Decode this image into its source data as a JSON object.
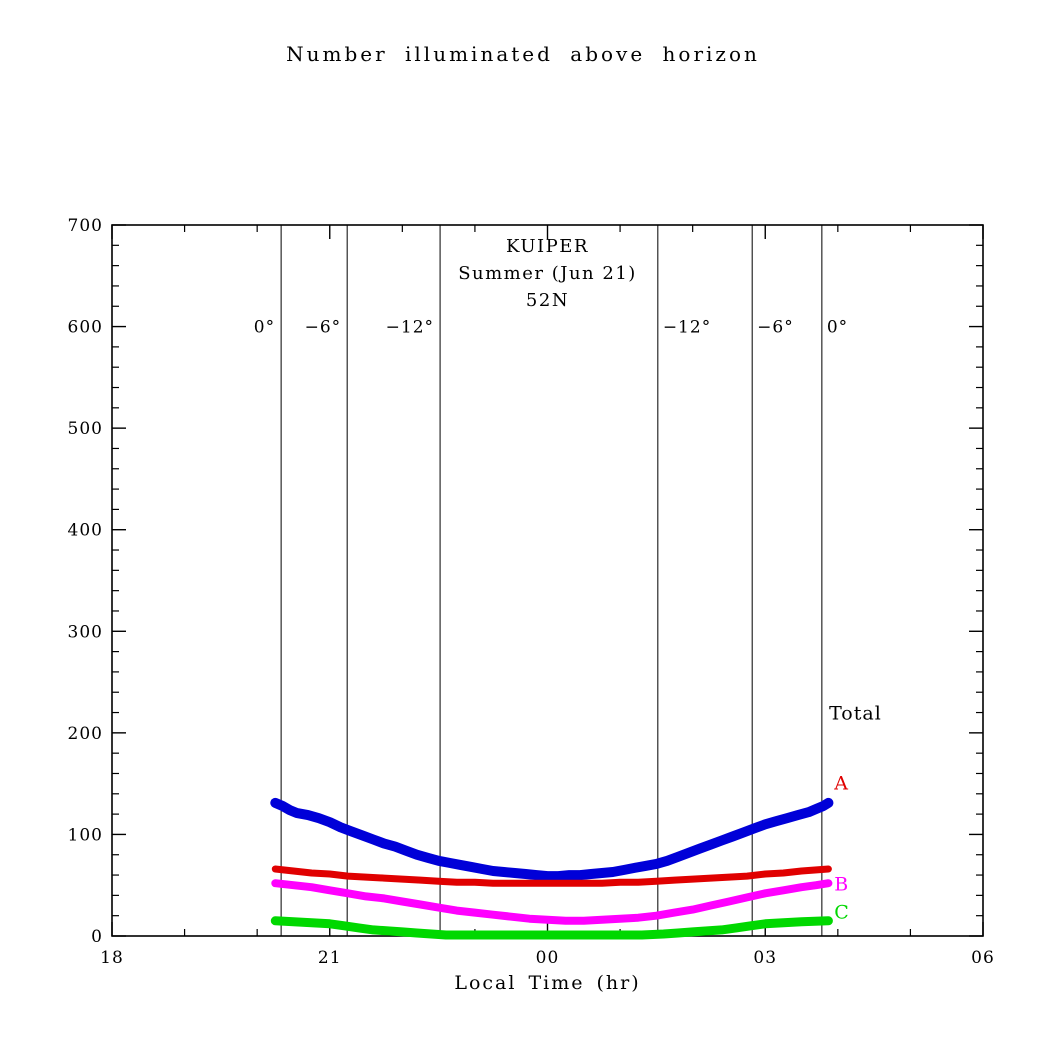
{
  "chart_data": {
    "type": "line",
    "title": "Number illuminated above horizon",
    "xlabel": "Local Time (hr)",
    "ylabel": "",
    "grid": false,
    "xlim_hours": [
      18,
      30
    ],
    "ylim": [
      0,
      700
    ],
    "x_major_ticks": [
      {
        "hour": 18,
        "label": "18"
      },
      {
        "hour": 21,
        "label": "21"
      },
      {
        "hour": 24,
        "label": "00"
      },
      {
        "hour": 27,
        "label": "03"
      },
      {
        "hour": 30,
        "label": "06"
      }
    ],
    "x_minor_step_hours": 1,
    "y_major_ticks": [
      {
        "value": 0,
        "label": "0"
      },
      {
        "value": 100,
        "label": "100"
      },
      {
        "value": 200,
        "label": "200"
      },
      {
        "value": 300,
        "label": "300"
      },
      {
        "value": 400,
        "label": "400"
      },
      {
        "value": 500,
        "label": "500"
      },
      {
        "value": 600,
        "label": "600"
      },
      {
        "value": 700,
        "label": "700"
      }
    ],
    "y_minor_step": 20,
    "inner_labels": [
      "KUIPER",
      "Summer (Jun 21)",
      "52N"
    ],
    "twilight_label_value": 600,
    "twilight_lines": [
      {
        "hour": 20.33,
        "label": "0°",
        "side": "left"
      },
      {
        "hour": 21.24,
        "label": "−6°",
        "side": "left"
      },
      {
        "hour": 22.52,
        "label": "−12°",
        "side": "left"
      },
      {
        "hour": 25.52,
        "label": "−12°",
        "side": "right"
      },
      {
        "hour": 26.82,
        "label": "−6°",
        "side": "right"
      },
      {
        "hour": 27.78,
        "label": "0°",
        "side": "right"
      }
    ],
    "series": [
      {
        "name": "Total",
        "color": "#0000d8",
        "label_color": "#000000",
        "stroke_width": 10,
        "label_at": {
          "hour": 27.88,
          "value": 213
        },
        "points": [
          [
            20.25,
            131
          ],
          [
            20.35,
            128
          ],
          [
            20.45,
            124
          ],
          [
            20.55,
            121
          ],
          [
            20.7,
            119
          ],
          [
            20.85,
            116
          ],
          [
            21.0,
            112
          ],
          [
            21.15,
            107
          ],
          [
            21.3,
            103
          ],
          [
            21.45,
            99
          ],
          [
            21.6,
            95
          ],
          [
            21.75,
            91
          ],
          [
            21.9,
            88
          ],
          [
            22.05,
            84
          ],
          [
            22.2,
            80
          ],
          [
            22.35,
            77
          ],
          [
            22.5,
            74
          ],
          [
            22.65,
            72
          ],
          [
            22.8,
            70
          ],
          [
            22.95,
            68
          ],
          [
            23.1,
            66
          ],
          [
            23.25,
            64
          ],
          [
            23.4,
            63
          ],
          [
            23.55,
            62
          ],
          [
            23.7,
            61
          ],
          [
            23.85,
            60
          ],
          [
            24.0,
            59
          ],
          [
            24.15,
            59
          ],
          [
            24.3,
            60
          ],
          [
            24.45,
            60
          ],
          [
            24.6,
            61
          ],
          [
            24.75,
            62
          ],
          [
            24.9,
            63
          ],
          [
            25.05,
            65
          ],
          [
            25.2,
            67
          ],
          [
            25.35,
            69
          ],
          [
            25.5,
            71
          ],
          [
            25.65,
            74
          ],
          [
            25.8,
            78
          ],
          [
            25.95,
            82
          ],
          [
            26.1,
            86
          ],
          [
            26.25,
            90
          ],
          [
            26.4,
            94
          ],
          [
            26.55,
            98
          ],
          [
            26.7,
            102
          ],
          [
            26.85,
            106
          ],
          [
            27.0,
            110
          ],
          [
            27.15,
            113
          ],
          [
            27.3,
            116
          ],
          [
            27.45,
            119
          ],
          [
            27.6,
            122
          ],
          [
            27.7,
            125
          ],
          [
            27.8,
            128
          ],
          [
            27.87,
            131
          ]
        ]
      },
      {
        "name": "A",
        "color": "#e00000",
        "label_color": "#e00000",
        "stroke_width": 7,
        "label_at": {
          "hour": 27.95,
          "value": 144
        },
        "points": [
          [
            20.25,
            66
          ],
          [
            20.5,
            64
          ],
          [
            20.75,
            62
          ],
          [
            21.0,
            61
          ],
          [
            21.25,
            59
          ],
          [
            21.5,
            58
          ],
          [
            21.75,
            57
          ],
          [
            22.0,
            56
          ],
          [
            22.25,
            55
          ],
          [
            22.5,
            54
          ],
          [
            22.75,
            53
          ],
          [
            23.0,
            53
          ],
          [
            23.25,
            52
          ],
          [
            23.5,
            52
          ],
          [
            23.75,
            52
          ],
          [
            24.0,
            52
          ],
          [
            24.25,
            52
          ],
          [
            24.5,
            52
          ],
          [
            24.75,
            52
          ],
          [
            25.0,
            53
          ],
          [
            25.25,
            53
          ],
          [
            25.5,
            54
          ],
          [
            25.75,
            55
          ],
          [
            26.0,
            56
          ],
          [
            26.25,
            57
          ],
          [
            26.5,
            58
          ],
          [
            26.75,
            59
          ],
          [
            27.0,
            61
          ],
          [
            27.25,
            62
          ],
          [
            27.5,
            64
          ],
          [
            27.87,
            66
          ]
        ]
      },
      {
        "name": "B",
        "color": "#ff00ff",
        "label_color": "#ff00ff",
        "stroke_width": 8,
        "label_at": {
          "hour": 27.95,
          "value": 45
        },
        "points": [
          [
            20.25,
            52
          ],
          [
            20.5,
            50
          ],
          [
            20.75,
            48
          ],
          [
            21.0,
            45
          ],
          [
            21.25,
            42
          ],
          [
            21.5,
            39
          ],
          [
            21.75,
            37
          ],
          [
            22.0,
            34
          ],
          [
            22.25,
            31
          ],
          [
            22.5,
            28
          ],
          [
            22.75,
            25
          ],
          [
            23.0,
            23
          ],
          [
            23.25,
            21
          ],
          [
            23.5,
            19
          ],
          [
            23.75,
            17
          ],
          [
            24.0,
            16
          ],
          [
            24.25,
            15
          ],
          [
            24.5,
            15
          ],
          [
            24.75,
            16
          ],
          [
            25.0,
            17
          ],
          [
            25.25,
            18
          ],
          [
            25.5,
            20
          ],
          [
            25.75,
            23
          ],
          [
            26.0,
            26
          ],
          [
            26.25,
            30
          ],
          [
            26.5,
            34
          ],
          [
            26.75,
            38
          ],
          [
            27.0,
            42
          ],
          [
            27.25,
            45
          ],
          [
            27.5,
            48
          ],
          [
            27.7,
            50
          ],
          [
            27.87,
            52
          ]
        ]
      },
      {
        "name": "C",
        "color": "#00d800",
        "label_color": "#00d800",
        "stroke_width": 9,
        "label_at": {
          "hour": 27.95,
          "value": 17
        },
        "points": [
          [
            20.25,
            15
          ],
          [
            20.5,
            14
          ],
          [
            20.75,
            13
          ],
          [
            21.0,
            12
          ],
          [
            21.2,
            10
          ],
          [
            21.4,
            8
          ],
          [
            21.6,
            6
          ],
          [
            21.8,
            5
          ],
          [
            22.0,
            4
          ],
          [
            22.2,
            3
          ],
          [
            22.4,
            2
          ],
          [
            22.6,
            1
          ],
          [
            22.8,
            1
          ],
          [
            23.0,
            1
          ],
          [
            23.5,
            1
          ],
          [
            24.0,
            1
          ],
          [
            24.5,
            1
          ],
          [
            25.0,
            1
          ],
          [
            25.3,
            1
          ],
          [
            25.6,
            2
          ],
          [
            25.8,
            3
          ],
          [
            26.0,
            4
          ],
          [
            26.2,
            5
          ],
          [
            26.4,
            6
          ],
          [
            26.6,
            8
          ],
          [
            26.8,
            10
          ],
          [
            27.0,
            12
          ],
          [
            27.25,
            13
          ],
          [
            27.5,
            14
          ],
          [
            27.87,
            15
          ]
        ]
      }
    ]
  }
}
